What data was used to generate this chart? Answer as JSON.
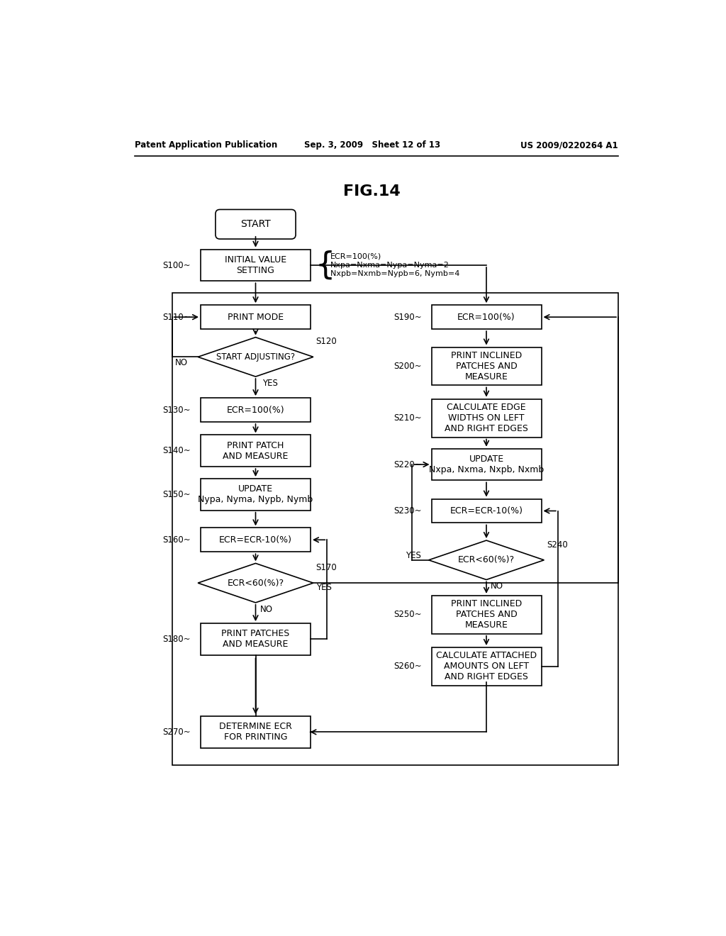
{
  "title": "FIG.14",
  "header_left": "Patent Application Publication",
  "header_center": "Sep. 3, 2009   Sheet 12 of 13",
  "header_right": "US 2009/0220264 A1",
  "bg_color": "#ffffff",
  "init_line1": "ECR=100(%)",
  "init_line2": "Nxpa=Nxma=Nypa=Nyma=2",
  "init_line3": "Nxpb=Nxmb=Nypb=6, Nymb=4"
}
